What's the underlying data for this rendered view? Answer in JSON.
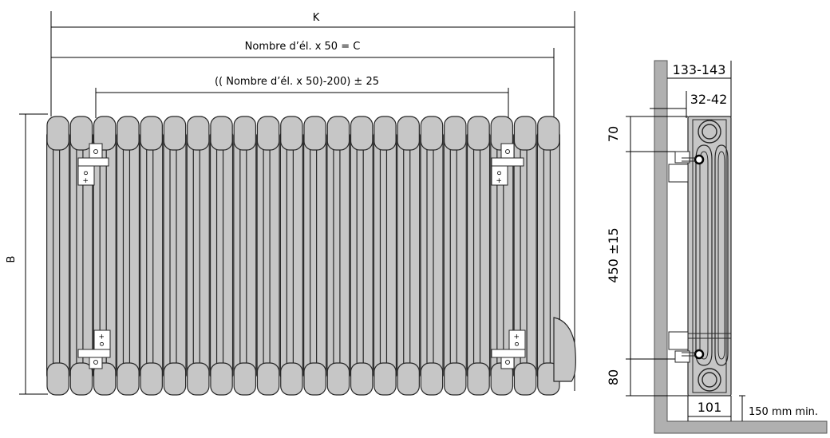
{
  "front_view": {
    "dim_k": "K",
    "dim_c": "Nombre d’él. x 50 = C",
    "dim_bracket": "(( Nombre d’él. x 50)-200) ± 25",
    "dim_b": "B",
    "section_count": 22
  },
  "side_view": {
    "dim_depth": "133-143",
    "dim_wall_gap": "32-42",
    "dim_top": "70",
    "dim_middle": "450 ±15",
    "dim_bottom": "80",
    "dim_width": "101",
    "dim_floor": "150 mm min."
  },
  "colors": {
    "radiator": "#c6c6c6",
    "outline": "#262626",
    "wall": "#b0b0b0"
  }
}
